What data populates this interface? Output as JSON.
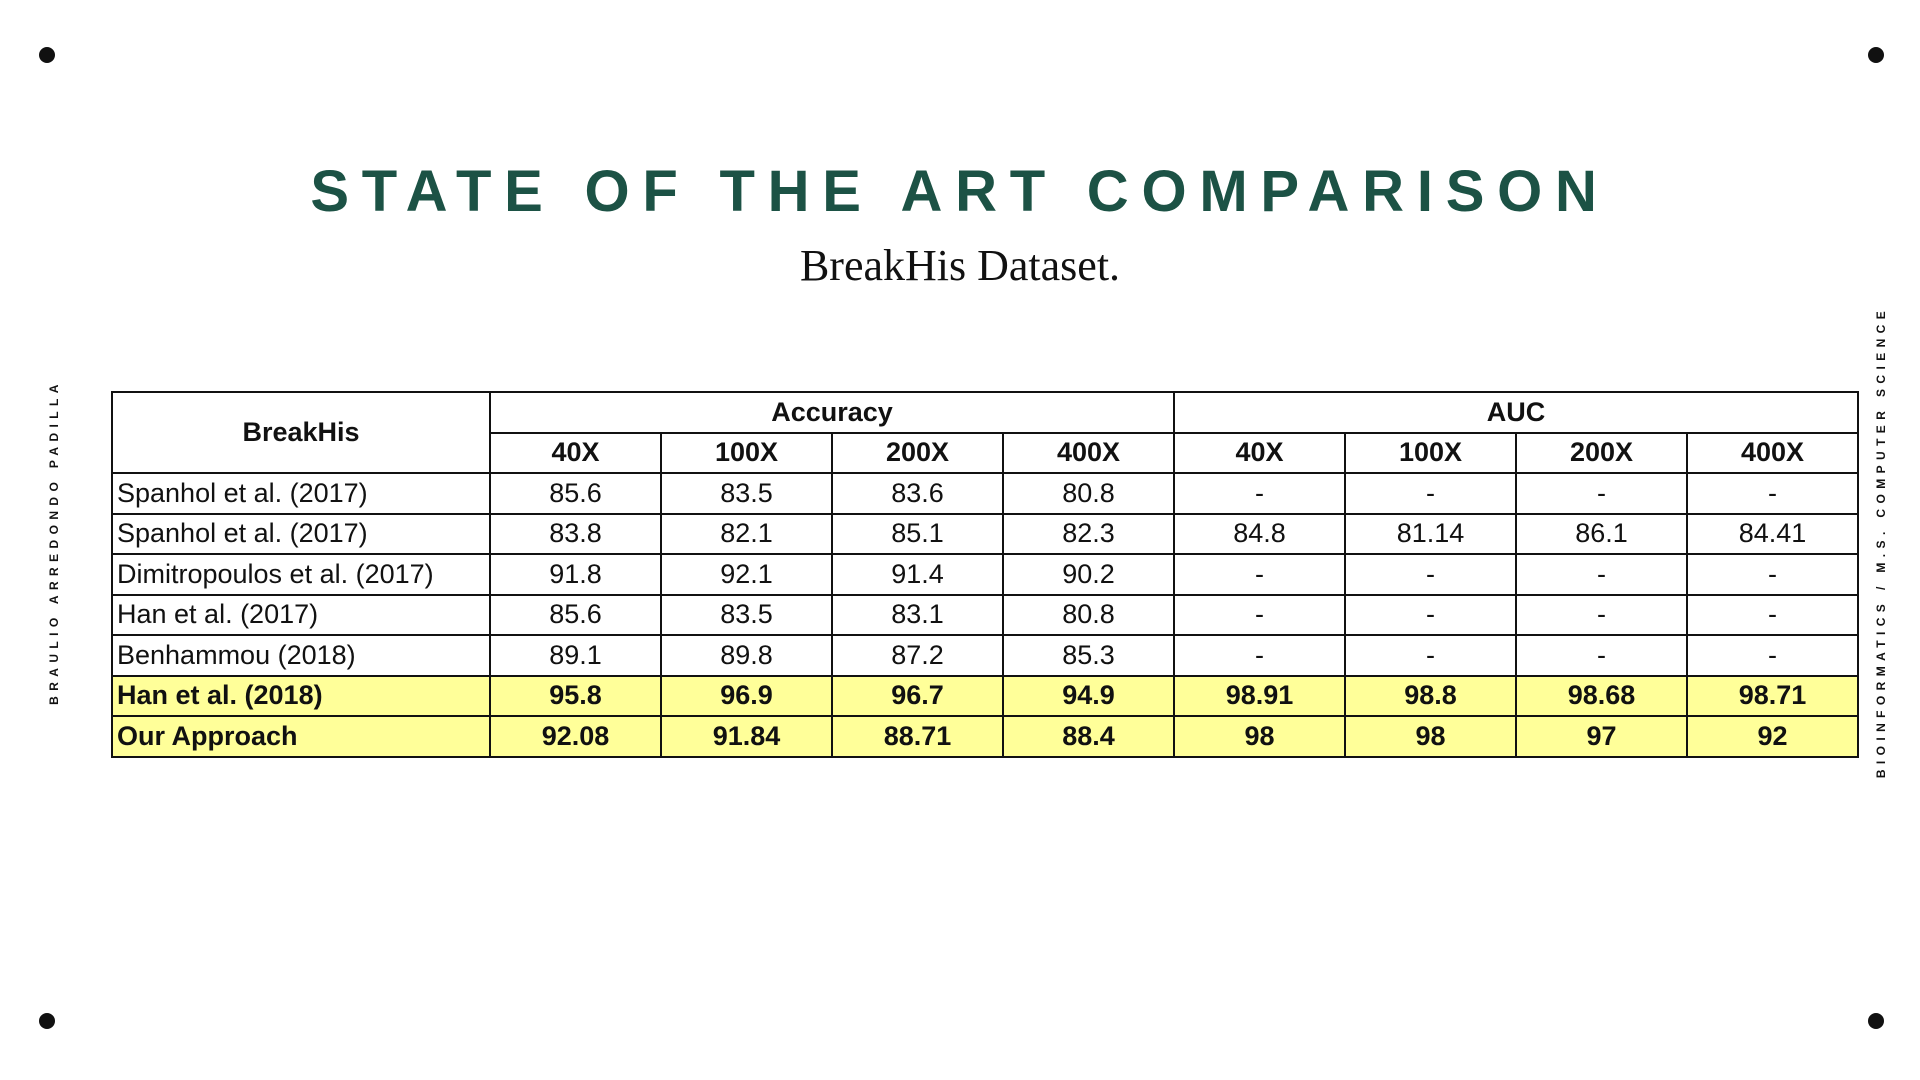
{
  "header": {
    "title": "STATE OF THE ART COMPARISON",
    "subtitle": "BreakHis Dataset."
  },
  "side_left": "BRAULIO ARREDONDO PADILLA",
  "side_right": "BIOINFORMATICS / M.S. COMPUTER SCIENCE",
  "table": {
    "corner": "BreakHis",
    "groups": [
      "Accuracy",
      "AUC"
    ],
    "subheaders": [
      "40X",
      "100X",
      "200X",
      "400X",
      "40X",
      "100X",
      "200X",
      "400X"
    ],
    "rows": [
      [
        "Spanhol et al. (2017)",
        "85.6",
        "83.5",
        "83.6",
        "80.8",
        "-",
        "-",
        "-",
        "-"
      ],
      [
        "Spanhol et al. (2017)",
        "83.8",
        "82.1",
        "85.1",
        "82.3",
        "84.8",
        "81.14",
        "86.1",
        "84.41"
      ],
      [
        "Dimitropoulos et al. (2017)",
        "91.8",
        "92.1",
        "91.4",
        "90.2",
        "-",
        "-",
        "-",
        "-"
      ],
      [
        "Han et al. (2017)",
        "85.6",
        "83.5",
        "83.1",
        "80.8",
        "-",
        "-",
        "-",
        "-"
      ],
      [
        "Benhammou (2018)",
        "89.1",
        "89.8",
        "87.2",
        "85.3",
        "-",
        "-",
        "-",
        "-"
      ],
      [
        "Han et al. (2018)",
        "95.8",
        "96.9",
        "96.7",
        "94.9",
        "98.91",
        "98.8",
        "98.68",
        "98.71"
      ],
      [
        "Our Approach",
        "92.08",
        "91.84",
        "88.71",
        "88.4",
        "98",
        "98",
        "97",
        "92"
      ]
    ],
    "highlight_rows": [
      5,
      6
    ],
    "highlight_color": "#ffff99"
  }
}
